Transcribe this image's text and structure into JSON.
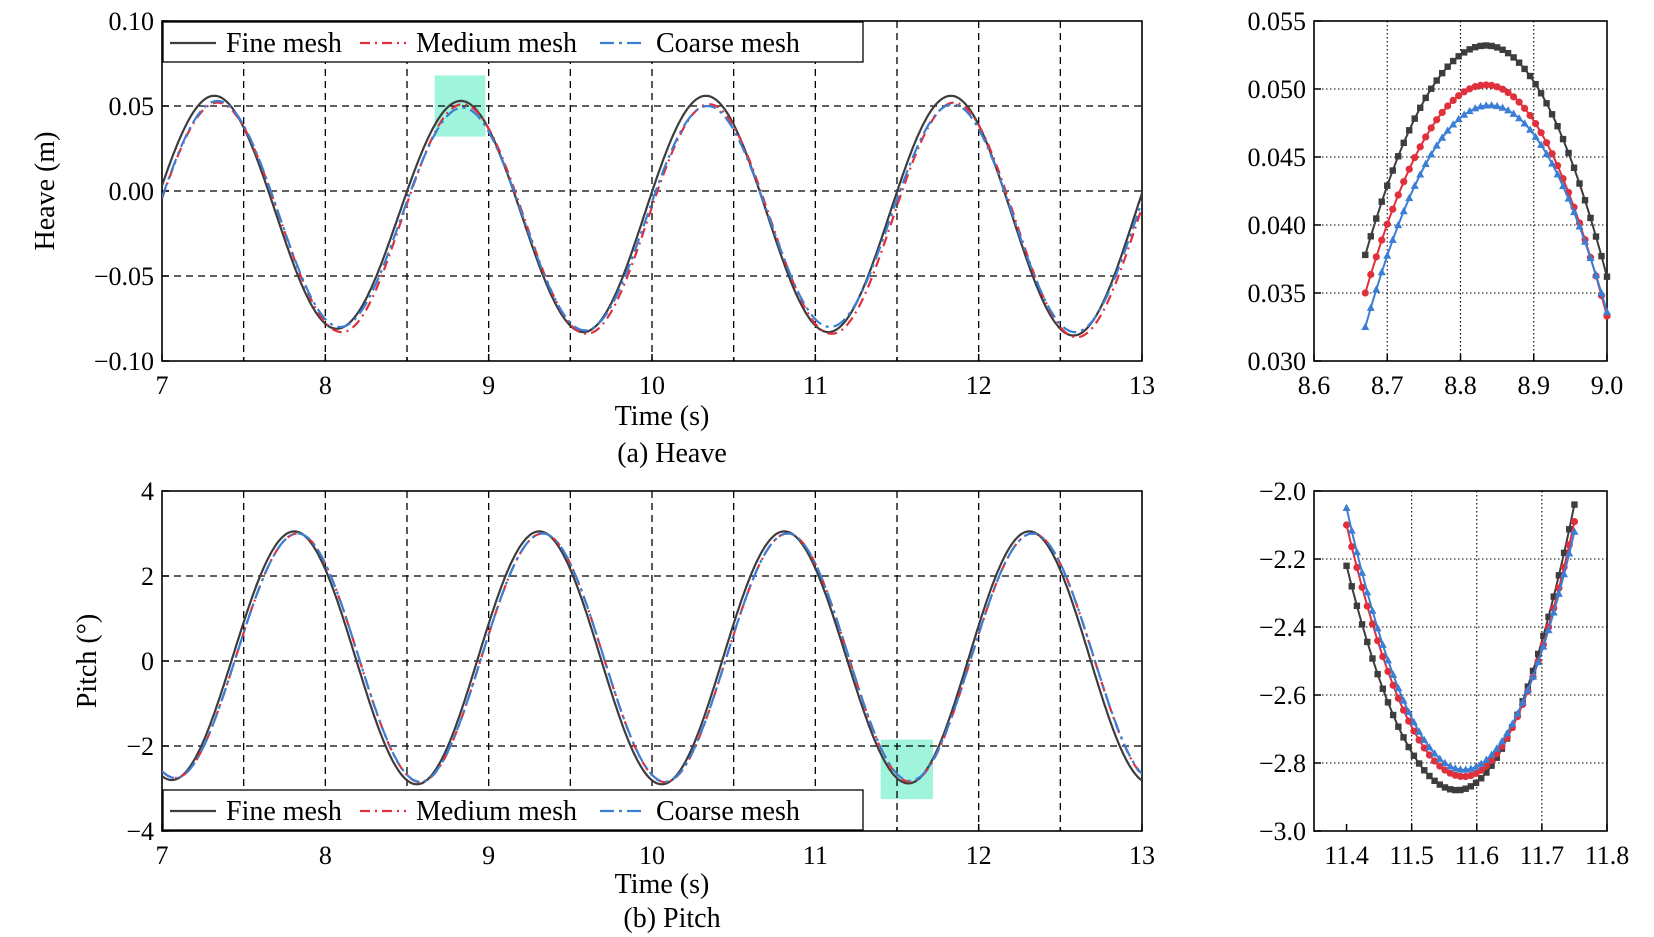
{
  "chart_data": [
    {
      "id": "heave",
      "type": "line",
      "caption": "(a) Heave",
      "xlabel": "Time (s)",
      "ylabel": "Heave (m)",
      "xlim": [
        7,
        13
      ],
      "ylim": [
        -0.1,
        0.1
      ],
      "xticks": [
        7,
        8,
        9,
        10,
        11,
        12,
        13
      ],
      "xtick_labels": [
        "7",
        "8",
        "9",
        "10",
        "11",
        "12",
        "13"
      ],
      "yticks": [
        -0.1,
        -0.05,
        0,
        0.05,
        0.1
      ],
      "ytick_labels": [
        "−0.10",
        "−0.05",
        "0.00",
        "0.05",
        "0.10"
      ],
      "grid": "dashed",
      "legend_position": "top-left",
      "highlight": {
        "x": [
          8.67,
          8.98
        ],
        "y": [
          0.032,
          0.068
        ],
        "color": "#7ff0cf"
      },
      "series": [
        {
          "name": "Fine mesh",
          "color": "#3d3d3d",
          "dash": "solid",
          "peak_times": [
            7.32,
            8.83,
            10.33,
            11.83
          ],
          "trough_times": [
            8.07,
            9.58,
            11.08,
            12.58
          ],
          "peaks": [
            0.056,
            0.053,
            0.056,
            0.056
          ],
          "troughs": [
            -0.081,
            -0.083,
            -0.083,
            -0.085
          ],
          "start": -0.005,
          "end": -0.005
        },
        {
          "name": "Medium mesh",
          "color": "#e0303c",
          "dash": "10 5 2 5",
          "peak_times": [
            7.34,
            8.84,
            10.35,
            11.85
          ],
          "trough_times": [
            8.1,
            9.6,
            11.1,
            12.6
          ],
          "peaks": [
            0.052,
            0.051,
            0.051,
            0.052
          ],
          "troughs": [
            -0.083,
            -0.084,
            -0.084,
            -0.086
          ],
          "start": -0.004,
          "end": -0.008
        },
        {
          "name": "Coarse mesh",
          "color": "#3a7fd5",
          "dash": "14 5 3 5",
          "peak_times": [
            7.34,
            8.84,
            10.34,
            11.84
          ],
          "trough_times": [
            8.09,
            9.59,
            11.09,
            12.59
          ],
          "peaks": [
            0.053,
            0.049,
            0.05,
            0.051
          ],
          "troughs": [
            -0.08,
            -0.082,
            -0.08,
            -0.083
          ],
          "start": -0.004,
          "end": -0.006
        }
      ]
    },
    {
      "id": "heave-zoom",
      "type": "line",
      "xlim": [
        8.6,
        9.0
      ],
      "ylim": [
        0.03,
        0.055
      ],
      "xticks": [
        8.6,
        8.7,
        8.8,
        8.9,
        9.0
      ],
      "xtick_labels": [
        "8.6",
        "8.7",
        "8.8",
        "8.9",
        "9.0"
      ],
      "yticks": [
        0.03,
        0.035,
        0.04,
        0.045,
        0.05,
        0.055
      ],
      "ytick_labels": [
        "0.030",
        "0.035",
        "0.040",
        "0.045",
        "0.050",
        "0.055"
      ],
      "grid": "dotted",
      "series": [
        {
          "name": "Fine mesh",
          "color": "#3d3d3d",
          "marker": "square",
          "x_range": [
            8.67,
            9.0
          ],
          "peak_x": 8.835,
          "peak_y": 0.0532,
          "start_y": 0.0378,
          "end_y": 0.0362
        },
        {
          "name": "Medium mesh",
          "color": "#e0303c",
          "marker": "circle",
          "x_range": [
            8.67,
            9.0
          ],
          "peak_x": 8.835,
          "peak_y": 0.0503,
          "start_y": 0.035,
          "end_y": 0.0333
        },
        {
          "name": "Coarse mesh",
          "color": "#3a7fd5",
          "marker": "triangle",
          "x_range": [
            8.67,
            9.0
          ],
          "peak_x": 8.84,
          "peak_y": 0.0488,
          "start_y": 0.0325,
          "end_y": 0.0336
        }
      ]
    },
    {
      "id": "pitch",
      "type": "line",
      "caption": "(b) Pitch",
      "xlabel": "Time (s)",
      "ylabel": "Pitch (°)",
      "xlim": [
        7,
        13
      ],
      "ylim": [
        -4,
        4
      ],
      "xticks": [
        7,
        8,
        9,
        10,
        11,
        12,
        13
      ],
      "xtick_labels": [
        "7",
        "8",
        "9",
        "10",
        "11",
        "12",
        "13"
      ],
      "yticks": [
        -4,
        -2,
        0,
        2,
        4
      ],
      "ytick_labels": [
        "−4",
        "−2",
        "0",
        "2",
        "4"
      ],
      "grid": "dashed",
      "legend_position": "bottom-left",
      "highlight": {
        "x": [
          11.4,
          11.72
        ],
        "y": [
          -3.25,
          -1.85
        ],
        "color": "#7ff0cf"
      },
      "series": [
        {
          "name": "Fine mesh",
          "color": "#3d3d3d",
          "dash": "solid",
          "trough_times": [
            7.06,
            8.56,
            10.06,
            11.57
          ],
          "peak_times": [
            7.81,
            9.31,
            10.81,
            12.31
          ],
          "troughs": [
            -2.8,
            -2.9,
            -2.9,
            -2.88
          ],
          "peaks": [
            3.05,
            3.05,
            3.05,
            3.05
          ],
          "end": -2.75
        },
        {
          "name": "Medium mesh",
          "color": "#e0303c",
          "dash": "10 5 2 5",
          "trough_times": [
            7.08,
            8.58,
            10.08,
            11.58
          ],
          "peak_times": [
            7.83,
            9.33,
            10.83,
            12.33
          ],
          "troughs": [
            -2.75,
            -2.85,
            -2.85,
            -2.84
          ],
          "peaks": [
            3.0,
            3.0,
            3.0,
            3.0
          ],
          "end": -2.65
        },
        {
          "name": "Coarse mesh",
          "color": "#3a7fd5",
          "dash": "14 5 3 5",
          "trough_times": [
            7.08,
            8.58,
            10.08,
            11.58
          ],
          "peak_times": [
            7.83,
            9.33,
            10.83,
            12.33
          ],
          "troughs": [
            -2.75,
            -2.84,
            -2.84,
            -2.82
          ],
          "peaks": [
            3.0,
            3.0,
            3.0,
            3.0
          ],
          "end": -2.65
        }
      ]
    },
    {
      "id": "pitch-zoom",
      "type": "line",
      "xlim": [
        11.35,
        11.8
      ],
      "ylim": [
        -3.0,
        -2.0
      ],
      "xticks": [
        11.4,
        11.5,
        11.6,
        11.7,
        11.8
      ],
      "xtick_labels": [
        "11.4",
        "11.5",
        "11.6",
        "11.7",
        "11.8"
      ],
      "yticks": [
        -3.0,
        -2.8,
        -2.6,
        -2.4,
        -2.2,
        -2.0
      ],
      "ytick_labels": [
        "−3.0",
        "−2.8",
        "−2.6",
        "−2.4",
        "−2.2",
        "−2.0"
      ],
      "grid": "dotted",
      "series": [
        {
          "name": "Fine mesh",
          "color": "#3d3d3d",
          "marker": "square",
          "x_range": [
            11.4,
            11.75
          ],
          "min_x": 11.57,
          "min_y": -2.88,
          "start_y": -2.22,
          "end_y": -2.04
        },
        {
          "name": "Medium mesh",
          "color": "#e0303c",
          "marker": "circle",
          "x_range": [
            11.4,
            11.75
          ],
          "min_x": 11.58,
          "min_y": -2.84,
          "start_y": -2.1,
          "end_y": -2.09
        },
        {
          "name": "Coarse mesh",
          "color": "#3a7fd5",
          "marker": "triangle",
          "x_range": [
            11.4,
            11.75
          ],
          "min_x": 11.58,
          "min_y": -2.82,
          "start_y": -2.05,
          "end_y": -2.12
        }
      ]
    }
  ]
}
